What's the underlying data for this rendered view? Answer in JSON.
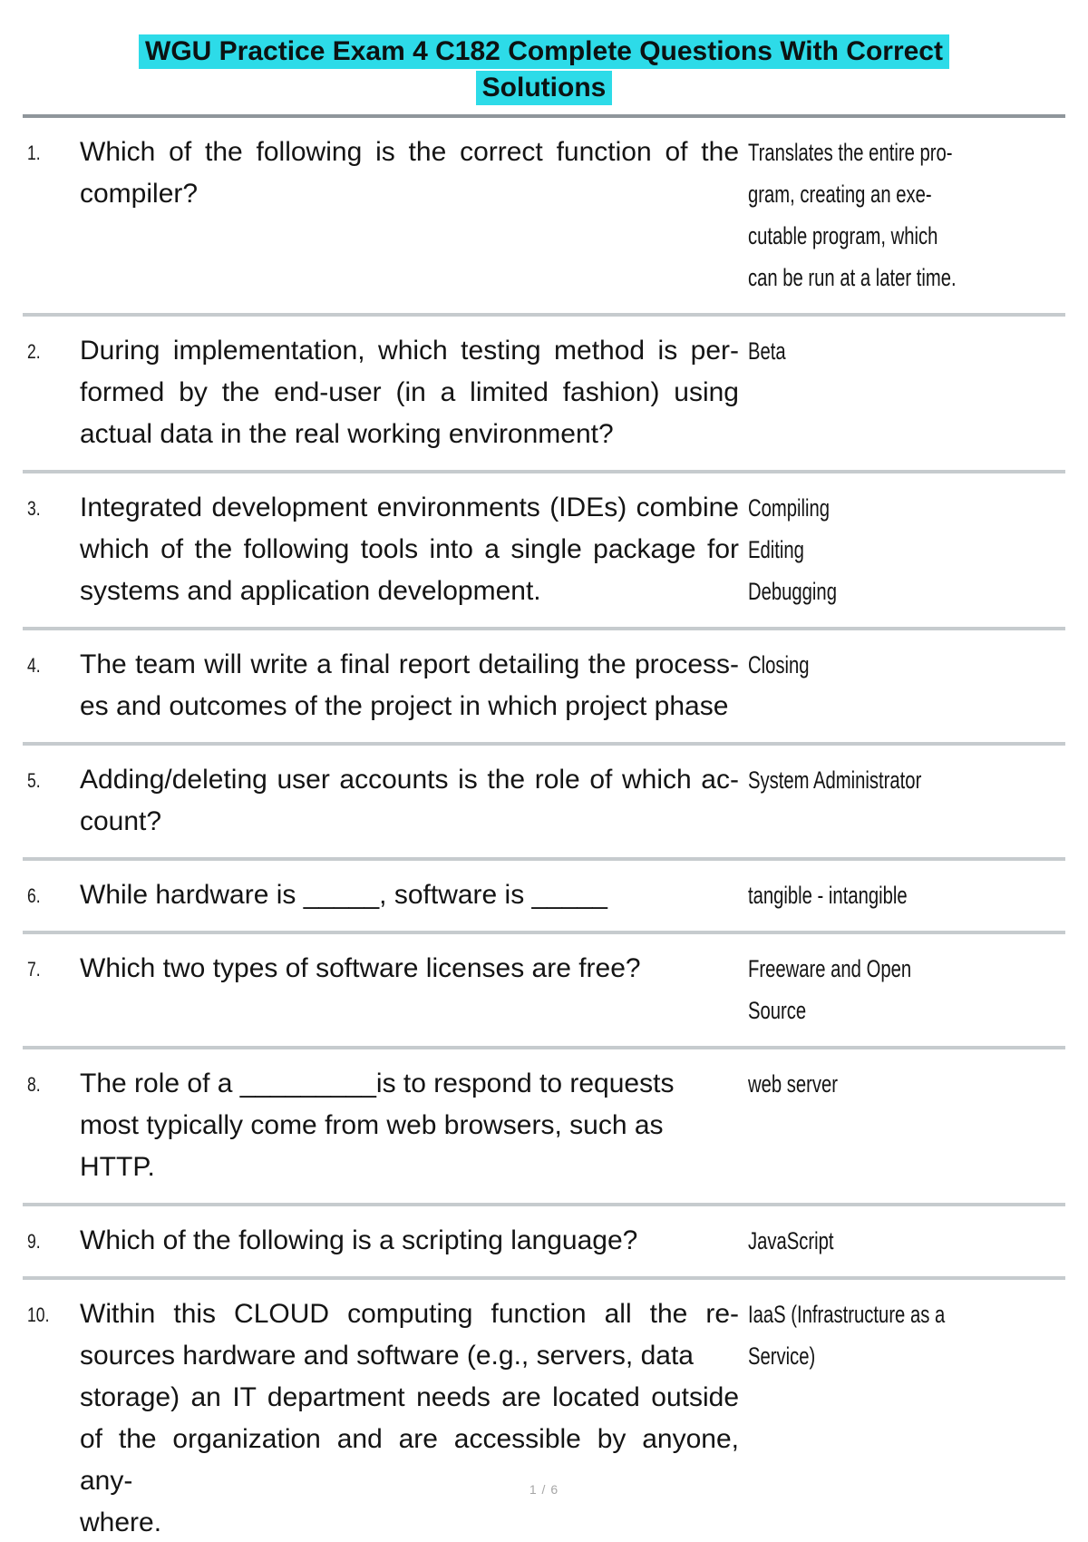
{
  "page": {
    "title_line1": "WGU Practice Exam 4 C182 Complete Questions With Correct",
    "title_line2": "Solutions",
    "page_number": "1 / 6"
  },
  "colors": {
    "title_highlight": "#2ddbe8",
    "divider_top": "#8f969b",
    "divider": "#c6cbce",
    "page_number_text": "#a6a6a6"
  },
  "questions": [
    {
      "number": "1.",
      "q_lines": [
        {
          "text": "Which of the following is the correct function of the",
          "fit": true
        },
        {
          "text": "compiler?",
          "fit": false
        }
      ],
      "a_lines": [
        "Translates the entire pro-",
        "gram, creating an exe-",
        "cutable program, which",
        "can be run at a later time."
      ]
    },
    {
      "number": "2.",
      "q_lines": [
        {
          "text": "During implementation, which testing method is per-",
          "fit": true
        },
        {
          "text": "formed by the end-user (in a limited fashion) using",
          "fit": true
        },
        {
          "text": "actual data in the real working environment?",
          "fit": false
        }
      ],
      "a_lines": [
        "Beta"
      ]
    },
    {
      "number": "3.",
      "q_lines": [
        {
          "text": "Integrated development environments (IDEs) combine",
          "fit": true
        },
        {
          "text": "which of the following tools into a single package for",
          "fit": true
        },
        {
          "text": "systems and application development.",
          "fit": false
        }
      ],
      "a_lines": [
        "Compiling",
        "Editing",
        "Debugging"
      ]
    },
    {
      "number": "4.",
      "q_lines": [
        {
          "text": "The team will write a final report detailing the process-",
          "fit": true
        },
        {
          "text": "es and outcomes of the project in which project phase",
          "fit": false
        }
      ],
      "a_lines": [
        "Closing"
      ]
    },
    {
      "number": "5.",
      "q_lines": [
        {
          "text": "Adding/deleting user accounts is the role of which ac-",
          "fit": true
        },
        {
          "text": "count?",
          "fit": false
        }
      ],
      "a_lines": [
        "System Administrator"
      ]
    },
    {
      "number": "6.",
      "q_lines": [
        {
          "text": "While hardware is _____, software is _____",
          "fit": false
        }
      ],
      "a_lines": [
        "tangible - intangible"
      ]
    },
    {
      "number": "7.",
      "q_lines": [
        {
          "text": "Which two types of software licenses are free?",
          "fit": false
        }
      ],
      "a_lines": [
        "Freeware and Open",
        "Source"
      ]
    },
    {
      "number": "8.",
      "q_lines": [
        {
          "text": "The role of a _________is to respond to requests",
          "fit": false
        },
        {
          "text": "most typically come from web browsers, such as HTTP.",
          "fit": false
        }
      ],
      "a_lines": [
        "web server"
      ]
    },
    {
      "number": "9.",
      "q_lines": [
        {
          "text": "Which of the following is a scripting language?",
          "fit": false
        }
      ],
      "a_lines": [
        "JavaScript"
      ]
    },
    {
      "number": "10.",
      "q_lines": [
        {
          "text": "Within this CLOUD computing function all the re-",
          "fit": true
        },
        {
          "text": "sources hardware and software (e.g., servers, data",
          "fit": false
        },
        {
          "text": "storage) an IT department needs are located outside",
          "fit": true
        },
        {
          "text": "of the organization and are accessible by anyone, any-",
          "fit": true
        },
        {
          "text": "where.",
          "fit": false
        }
      ],
      "a_lines": [
        "IaaS (Infrastructure as a",
        "Service)"
      ]
    }
  ]
}
